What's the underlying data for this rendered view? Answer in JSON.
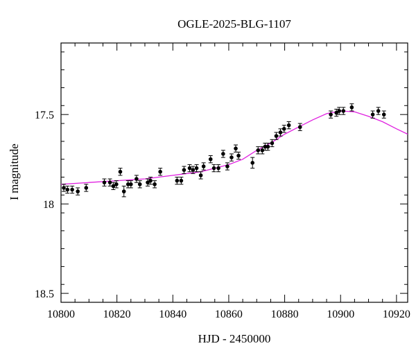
{
  "chart_data": {
    "type": "scatter",
    "title": "OGLE-2025-BLG-1107",
    "xlabel": "HJD - 2450000",
    "ylabel": "I magnitude",
    "xlim": [
      10800,
      10924
    ],
    "ylim": [
      18.55,
      17.1
    ],
    "y_inverted": true,
    "grid": false,
    "x_ticks": [
      10800,
      10820,
      10840,
      10860,
      10880,
      10900,
      10920
    ],
    "x_tick_labels": [
      "10800",
      "10820",
      "10840",
      "10860",
      "10880",
      "10900",
      "10920"
    ],
    "y_ticks": [
      17.5,
      18.0,
      18.5
    ],
    "y_tick_labels": [
      "17.5",
      "18",
      "18.5"
    ],
    "colors": {
      "points": "#000000",
      "model": "#e020e0"
    },
    "series": [
      {
        "kind": "points",
        "x": [
          10801.0,
          10802.3,
          10804.0,
          10806.0,
          10809.0,
          10815.5,
          10817.5,
          10818.7,
          10819.8,
          10821.2,
          10822.5,
          10824.0,
          10825.0,
          10827.0,
          10828.2,
          10831.0,
          10832.0,
          10833.5,
          10835.5,
          10841.5,
          10843.0,
          10844.0,
          10846.0,
          10847.2,
          10848.5,
          10850.0,
          10851.0,
          10853.5,
          10854.7,
          10856.3,
          10858.0,
          10859.5,
          10861.0,
          10862.5,
          10863.5,
          10868.5,
          10870.5,
          10872.0,
          10873.0,
          10874.0,
          10875.5,
          10877.0,
          10878.5,
          10879.8,
          10881.5,
          10885.5,
          10896.5,
          10898.5,
          10899.5,
          10901.0,
          10904.0,
          10911.5,
          10913.5,
          10915.5
        ],
        "y": [
          17.91,
          17.92,
          17.92,
          17.93,
          17.91,
          17.88,
          17.88,
          17.9,
          17.89,
          17.82,
          17.93,
          17.89,
          17.89,
          17.86,
          17.89,
          17.88,
          17.87,
          17.89,
          17.82,
          17.87,
          17.87,
          17.81,
          17.8,
          17.81,
          17.8,
          17.84,
          17.79,
          17.75,
          17.8,
          17.8,
          17.72,
          17.79,
          17.74,
          17.69,
          17.73,
          17.77,
          17.7,
          17.7,
          17.68,
          17.68,
          17.66,
          17.62,
          17.6,
          17.58,
          17.56,
          17.57,
          17.5,
          17.49,
          17.48,
          17.48,
          17.46,
          17.5,
          17.48,
          17.5
        ],
        "err": [
          0.02,
          0.02,
          0.02,
          0.02,
          0.02,
          0.02,
          0.02,
          0.02,
          0.02,
          0.02,
          0.03,
          0.02,
          0.02,
          0.02,
          0.02,
          0.02,
          0.02,
          0.02,
          0.02,
          0.02,
          0.02,
          0.02,
          0.02,
          0.02,
          0.02,
          0.02,
          0.02,
          0.02,
          0.02,
          0.02,
          0.02,
          0.02,
          0.02,
          0.02,
          0.02,
          0.03,
          0.02,
          0.02,
          0.02,
          0.02,
          0.02,
          0.02,
          0.02,
          0.02,
          0.02,
          0.02,
          0.02,
          0.02,
          0.02,
          0.02,
          0.02,
          0.02,
          0.02,
          0.02
        ]
      },
      {
        "kind": "line",
        "x": [
          10800,
          10810,
          10820,
          10830,
          10840,
          10850,
          10855,
          10860,
          10865,
          10870,
          10875,
          10880,
          10885,
          10890,
          10895,
          10900,
          10905,
          10910,
          10915,
          10920,
          10924
        ],
        "y": [
          17.89,
          17.88,
          17.87,
          17.86,
          17.84,
          17.82,
          17.8,
          17.78,
          17.75,
          17.7,
          17.66,
          17.61,
          17.57,
          17.53,
          17.495,
          17.48,
          17.485,
          17.51,
          17.54,
          17.58,
          17.61
        ]
      }
    ]
  }
}
